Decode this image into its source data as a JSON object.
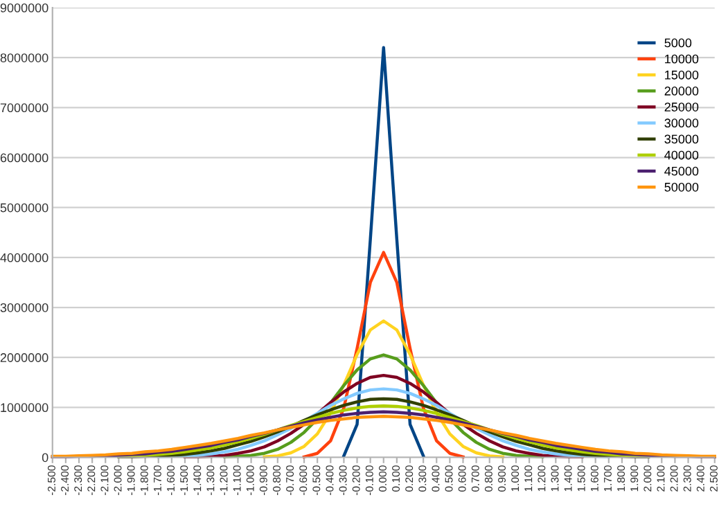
{
  "chart_data": {
    "type": "line",
    "categories": [
      "-2.500",
      "-2.400",
      "-2.300",
      "-2.200",
      "-2.100",
      "-2.000",
      "-1.900",
      "-1.800",
      "-1.700",
      "-1.600",
      "-1.500",
      "-1.400",
      "-1.300",
      "-1.200",
      "-1.100",
      "-1.000",
      "-0.900",
      "-0.800",
      "-0.700",
      "-0.600",
      "-0.500",
      "-0.400",
      "-0.300",
      "-0.200",
      "-0.100",
      "0.000",
      "0.100",
      "0.200",
      "0.300",
      "0.400",
      "0.500",
      "0.600",
      "0.700",
      "0.800",
      "0.900",
      "1.000",
      "1.100",
      "1.200",
      "1.300",
      "1.400",
      "1.500",
      "1.600",
      "1.700",
      "1.800",
      "1.900",
      "2.000",
      "2.100",
      "2.200",
      "2.300",
      "2.400",
      "2.500"
    ],
    "series": [
      {
        "name": "5000",
        "color": "#004586",
        "values": [
          null,
          null,
          null,
          null,
          null,
          null,
          null,
          null,
          null,
          null,
          null,
          null,
          null,
          null,
          null,
          null,
          null,
          null,
          null,
          null,
          null,
          null,
          30000,
          660000,
          4360000,
          8200000,
          4360000,
          660000,
          30000,
          null,
          null,
          null,
          null,
          null,
          null,
          null,
          null,
          null,
          null,
          null,
          null,
          null,
          null,
          null,
          null,
          null,
          null,
          null,
          null,
          null,
          null
        ]
      },
      {
        "name": "10000",
        "color": "#ff420e",
        "values": [
          null,
          null,
          null,
          null,
          null,
          null,
          null,
          null,
          null,
          null,
          null,
          null,
          null,
          null,
          null,
          null,
          null,
          null,
          null,
          10000,
          80000,
          330000,
          990000,
          2180000,
          3500000,
          4100000,
          3500000,
          2180000,
          990000,
          330000,
          80000,
          10000,
          null,
          null,
          null,
          null,
          null,
          null,
          null,
          null,
          null,
          null,
          null,
          null,
          null,
          null,
          null,
          null,
          null,
          null,
          null
        ]
      },
      {
        "name": "15000",
        "color": "#ffd320",
        "values": [
          null,
          null,
          null,
          null,
          null,
          null,
          null,
          null,
          null,
          null,
          null,
          null,
          null,
          null,
          null,
          null,
          10000,
          30000,
          90000,
          220000,
          470000,
          890000,
          1450000,
          2060000,
          2550000,
          2730000,
          2550000,
          2060000,
          1450000,
          890000,
          470000,
          220000,
          90000,
          30000,
          10000,
          null,
          null,
          null,
          null,
          null,
          null,
          null,
          null,
          null,
          null,
          null,
          null,
          null,
          null,
          null,
          null
        ]
      },
      {
        "name": "20000",
        "color": "#579d1c",
        "values": [
          null,
          null,
          null,
          null,
          null,
          null,
          null,
          null,
          null,
          null,
          null,
          null,
          null,
          10000,
          20000,
          40000,
          80000,
          160000,
          300000,
          500000,
          770000,
          1090000,
          1440000,
          1750000,
          1970000,
          2050000,
          1970000,
          1750000,
          1440000,
          1090000,
          770000,
          500000,
          300000,
          160000,
          80000,
          40000,
          20000,
          10000,
          null,
          null,
          null,
          null,
          null,
          null,
          null,
          null,
          null,
          null,
          null,
          null,
          null
        ]
      },
      {
        "name": "25000",
        "color": "#7e0021",
        "values": [
          null,
          null,
          null,
          null,
          null,
          null,
          null,
          null,
          null,
          null,
          10000,
          10000,
          20000,
          40000,
          80000,
          130000,
          210000,
          330000,
          480000,
          660000,
          870000,
          1100000,
          1310000,
          1480000,
          1600000,
          1640000,
          1600000,
          1480000,
          1310000,
          1100000,
          870000,
          660000,
          480000,
          330000,
          210000,
          130000,
          80000,
          40000,
          20000,
          10000,
          10000,
          null,
          null,
          null,
          null,
          null,
          null,
          null,
          null,
          null,
          null
        ]
      },
      {
        "name": "30000",
        "color": "#83caff",
        "values": [
          null,
          null,
          null,
          null,
          null,
          null,
          null,
          null,
          10000,
          20000,
          30000,
          40000,
          70000,
          110000,
          160000,
          240000,
          330000,
          450000,
          580000,
          730000,
          880000,
          1040000,
          1170000,
          1280000,
          1350000,
          1370000,
          1350000,
          1280000,
          1170000,
          1040000,
          880000,
          730000,
          580000,
          450000,
          330000,
          240000,
          160000,
          110000,
          70000,
          40000,
          30000,
          20000,
          10000,
          null,
          null,
          null,
          null,
          null,
          null,
          null,
          null
        ]
      },
      {
        "name": "35000",
        "color": "#314004",
        "values": [
          null,
          null,
          null,
          null,
          null,
          10000,
          10000,
          20000,
          30000,
          40000,
          60000,
          90000,
          130000,
          180000,
          250000,
          320000,
          410000,
          510000,
          620000,
          740000,
          850000,
          950000,
          1040000,
          1110000,
          1160000,
          1170000,
          1160000,
          1110000,
          1040000,
          950000,
          850000,
          740000,
          620000,
          510000,
          410000,
          320000,
          250000,
          180000,
          130000,
          90000,
          60000,
          40000,
          30000,
          20000,
          10000,
          10000,
          null,
          null,
          null,
          null,
          null
        ]
      },
      {
        "name": "40000",
        "color": "#aecf00",
        "values": [
          null,
          null,
          null,
          null,
          null,
          20000,
          30000,
          40000,
          60000,
          80000,
          110000,
          150000,
          190000,
          250000,
          310000,
          380000,
          460000,
          550000,
          640000,
          720000,
          800000,
          880000,
          940000,
          990000,
          1020000,
          1030000,
          1020000,
          990000,
          940000,
          880000,
          800000,
          720000,
          640000,
          550000,
          460000,
          380000,
          310000,
          250000,
          190000,
          150000,
          110000,
          80000,
          60000,
          40000,
          30000,
          20000,
          null,
          null,
          null,
          null,
          null
        ]
      },
      {
        "name": "45000",
        "color": "#4b1f6f",
        "values": [
          10000,
          10000,
          20000,
          20000,
          30000,
          40000,
          60000,
          70000,
          100000,
          120000,
          160000,
          200000,
          240000,
          300000,
          350000,
          420000,
          480000,
          550000,
          620000,
          690000,
          750000,
          800000,
          850000,
          880000,
          900000,
          910000,
          900000,
          880000,
          850000,
          800000,
          750000,
          690000,
          620000,
          550000,
          480000,
          420000,
          350000,
          300000,
          240000,
          200000,
          160000,
          120000,
          100000,
          70000,
          60000,
          40000,
          30000,
          20000,
          20000,
          10000,
          10000
        ]
      },
      {
        "name": "50000",
        "color": "#ff950e",
        "values": [
          20000,
          20000,
          30000,
          40000,
          50000,
          70000,
          80000,
          110000,
          130000,
          160000,
          200000,
          240000,
          280000,
          330000,
          380000,
          440000,
          490000,
          550000,
          600000,
          650000,
          700000,
          740000,
          770000,
          800000,
          810000,
          820000,
          810000,
          800000,
          770000,
          740000,
          700000,
          650000,
          600000,
          550000,
          490000,
          440000,
          380000,
          330000,
          280000,
          240000,
          200000,
          160000,
          130000,
          110000,
          80000,
          70000,
          50000,
          40000,
          30000,
          20000,
          20000
        ]
      }
    ],
    "ylim": [
      0,
      9000000
    ],
    "yticks": [
      0,
      1000000,
      2000000,
      3000000,
      4000000,
      5000000,
      6000000,
      7000000,
      8000000,
      9000000
    ],
    "grid": "y",
    "legend": "top right",
    "marker": "none",
    "line_style": "solid"
  }
}
